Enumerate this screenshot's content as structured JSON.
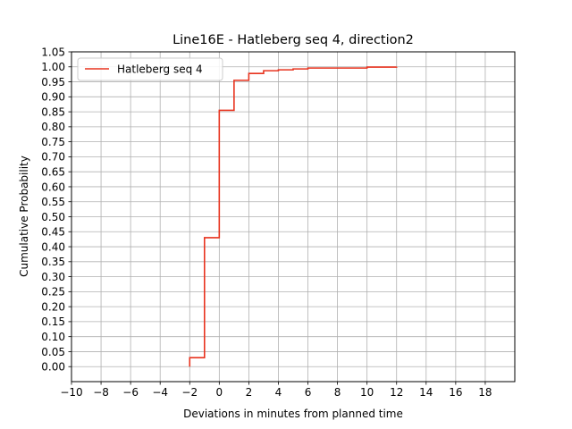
{
  "chart_data": {
    "type": "line",
    "step": true,
    "title": "Line16E - Hatleberg seq 4, direction2",
    "xlabel": "Deviations in minutes from planned time",
    "ylabel": "Cumulative Probability",
    "xlim": [
      -10,
      20
    ],
    "ylim": [
      -0.05,
      1.05
    ],
    "xticks": [
      -10,
      -8,
      -6,
      -4,
      -2,
      0,
      2,
      4,
      6,
      8,
      10,
      12,
      14,
      16,
      18
    ],
    "xtick_labels": [
      "−10",
      "−8",
      "−6",
      "−4",
      "−2",
      "0",
      "2",
      "4",
      "6",
      "8",
      "10",
      "12",
      "14",
      "16",
      "18"
    ],
    "yticks": [
      0,
      0.05,
      0.1,
      0.15,
      0.2,
      0.25,
      0.3,
      0.35,
      0.4,
      0.45,
      0.5,
      0.55,
      0.6,
      0.65,
      0.7,
      0.75,
      0.8,
      0.85,
      0.9,
      0.95,
      1.0,
      1.05
    ],
    "ytick_labels": [
      "0.00",
      "0.05",
      "0.10",
      "0.15",
      "0.20",
      "0.25",
      "0.30",
      "0.35",
      "0.40",
      "0.45",
      "0.50",
      "0.55",
      "0.60",
      "0.65",
      "0.70",
      "0.75",
      "0.80",
      "0.85",
      "0.90",
      "0.95",
      "1.00",
      "1.05"
    ],
    "grid": true,
    "legend_position": "top-left",
    "series": [
      {
        "name": "Hatleberg seq 4",
        "color": "#e8331e",
        "x": [
          -2,
          -1,
          0,
          1,
          2,
          3,
          4,
          5,
          6,
          10,
          12
        ],
        "y": [
          0.03,
          0.43,
          0.855,
          0.955,
          0.978,
          0.987,
          0.99,
          0.993,
          0.996,
          0.999,
          1.0
        ],
        "start_y": 0.0
      }
    ]
  }
}
